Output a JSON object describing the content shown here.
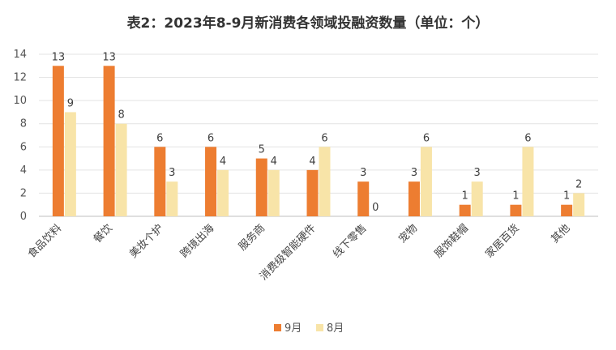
{
  "chart_data": {
    "type": "bar",
    "title": "表2：2023年8-9月新消费各领域投融资数量（单位：个）",
    "categories": [
      "食品饮料",
      "餐饮",
      "美妆个护",
      "跨境出海",
      "服务商",
      "消费级智能硬件",
      "线下零售",
      "宠物",
      "服饰鞋帽",
      "家居百货",
      "其他"
    ],
    "series": [
      {
        "name": "9月",
        "color": "#ED7D31",
        "values": [
          13,
          13,
          6,
          6,
          5,
          4,
          3,
          3,
          1,
          1,
          1
        ]
      },
      {
        "name": "8月",
        "color": "#F8E4A8",
        "values": [
          9,
          8,
          3,
          4,
          4,
          6,
          0,
          6,
          3,
          6,
          2
        ]
      }
    ],
    "ylim": [
      0,
      14
    ],
    "yticks": [
      0,
      2,
      4,
      6,
      8,
      10,
      12,
      14
    ],
    "grid": true,
    "legend": "bottom-center",
    "xlabel": "",
    "ylabel": ""
  }
}
